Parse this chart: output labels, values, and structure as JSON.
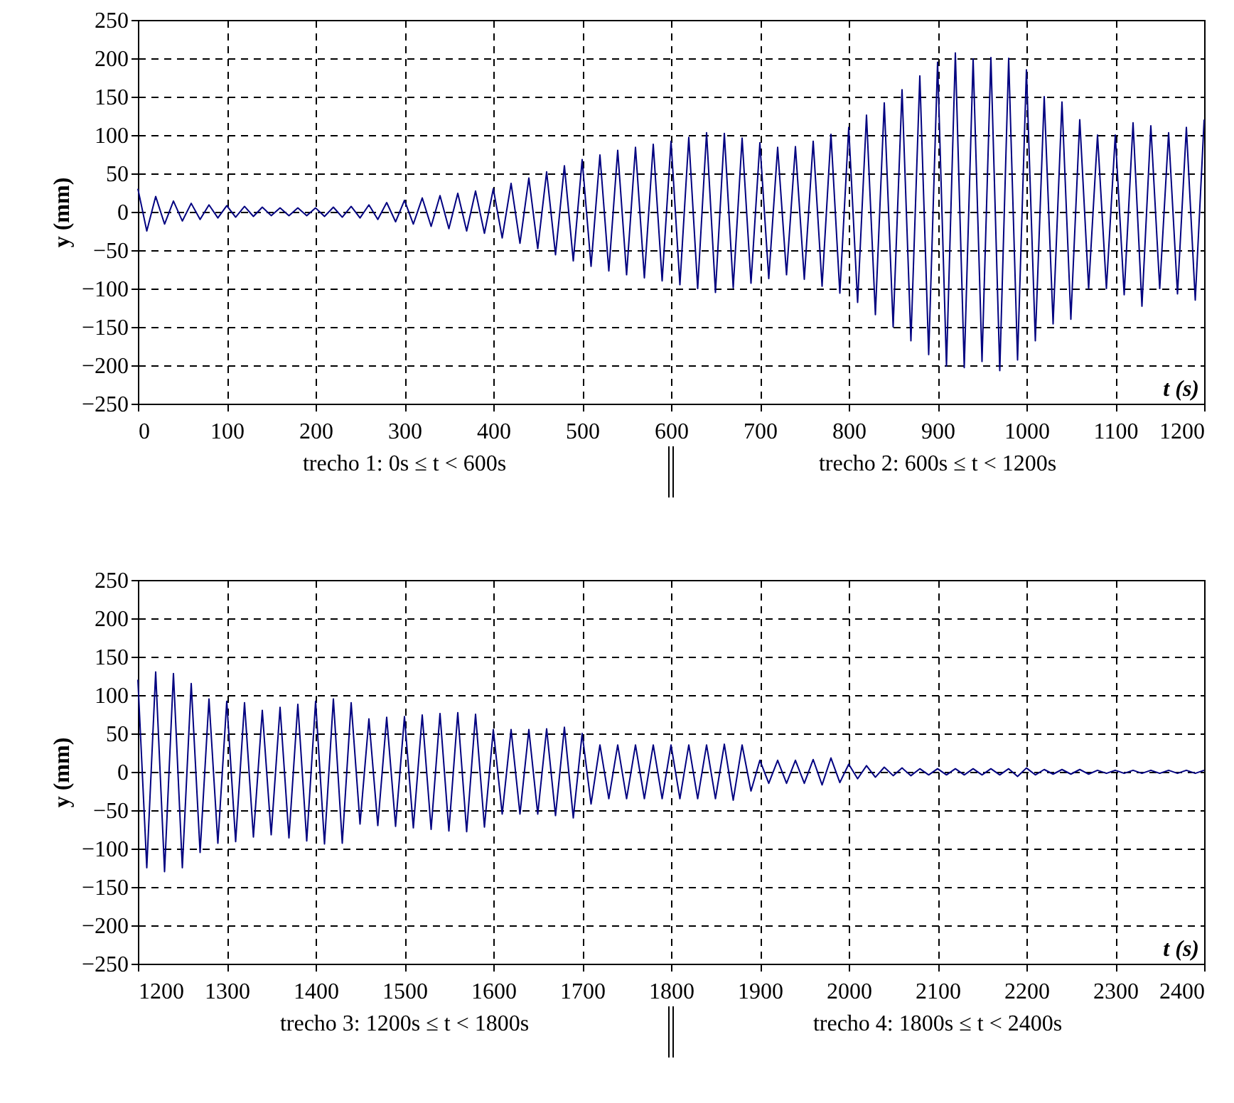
{
  "chart_data": [
    {
      "type": "line",
      "xlabel": "t (s)",
      "ylabel": "y (mm)",
      "xlim": [
        0,
        1200
      ],
      "xticks": [
        0,
        100,
        200,
        300,
        400,
        500,
        600,
        700,
        800,
        900,
        1000,
        1100,
        1200
      ],
      "ylim": [
        -250,
        250
      ],
      "yticks": [
        -250,
        -200,
        -150,
        -100,
        -50,
        0,
        50,
        100,
        150,
        200,
        250
      ],
      "grid": true,
      "line_style": "solid",
      "marker": "none",
      "annotations": [
        "trecho 1: 0s ≤ t < 600s",
        "trecho 2: 600s ≤ t < 1200s"
      ],
      "x": [
        0,
        10,
        20,
        30,
        40,
        50,
        60,
        70,
        80,
        90,
        100,
        110,
        120,
        130,
        140,
        150,
        160,
        170,
        180,
        190,
        200,
        210,
        220,
        230,
        240,
        250,
        260,
        270,
        280,
        290,
        300,
        310,
        320,
        330,
        340,
        350,
        360,
        370,
        380,
        390,
        400,
        410,
        420,
        430,
        440,
        450,
        460,
        470,
        480,
        490,
        500,
        510,
        520,
        530,
        540,
        550,
        560,
        570,
        580,
        590,
        600,
        610,
        620,
        630,
        640,
        650,
        660,
        670,
        680,
        690,
        700,
        710,
        720,
        730,
        740,
        750,
        760,
        770,
        780,
        790,
        800,
        810,
        820,
        830,
        840,
        850,
        860,
        870,
        880,
        890,
        900,
        910,
        920,
        930,
        940,
        950,
        960,
        970,
        980,
        990,
        1000,
        1010,
        1020,
        1030,
        1040,
        1050,
        1060,
        1070,
        1080,
        1090,
        1100,
        1110,
        1120,
        1130,
        1140,
        1150,
        1160,
        1170,
        1180,
        1190,
        1200
      ],
      "series": [
        {
          "color": "#000080",
          "values": [
            30,
            -25,
            20,
            -16,
            14,
            -12,
            11,
            -10,
            9,
            -8,
            8,
            -7,
            7,
            -6,
            6,
            -5,
            5,
            -5,
            5,
            -5,
            5,
            -6,
            6,
            -7,
            7,
            -8,
            9,
            -10,
            12,
            -13,
            15,
            -16,
            18,
            -19,
            21,
            -22,
            24,
            -25,
            27,
            -28,
            30,
            -34,
            37,
            -41,
            44,
            -48,
            52,
            -56,
            60,
            -64,
            68,
            -71,
            74,
            -77,
            80,
            -82,
            84,
            -86,
            88,
            -90,
            92,
            -95,
            97,
            -100,
            103,
            -105,
            102,
            -99,
            96,
            -93,
            90,
            -87,
            84,
            -82,
            85,
            -88,
            92,
            -97,
            101,
            -106,
            110,
            -118,
            126,
            -134,
            142,
            -150,
            159,
            -168,
            177,
            -186,
            195,
            -201,
            207,
            -203,
            199,
            -195,
            201,
            -207,
            200,
            -193,
            185,
            -168,
            150,
            -146,
            143,
            -140,
            120,
            -100,
            100,
            -100,
            100,
            -108,
            116,
            -123,
            112,
            -100,
            103,
            -107,
            110,
            -115,
            120
          ]
        }
      ]
    },
    {
      "type": "line",
      "xlabel": "t (s)",
      "ylabel": "y (mm)",
      "xlim": [
        1200,
        2400
      ],
      "xticks": [
        1200,
        1300,
        1400,
        1500,
        1600,
        1700,
        1800,
        1900,
        2000,
        2100,
        2200,
        2300,
        2400
      ],
      "ylim": [
        -250,
        250
      ],
      "yticks": [
        -250,
        -200,
        -150,
        -100,
        -50,
        0,
        50,
        100,
        150,
        200,
        250
      ],
      "grid": true,
      "line_style": "solid",
      "marker": "none",
      "annotations": [
        "trecho 3: 1200s ≤ t < 1800s",
        "trecho 4: 1800s ≤ t < 2400s"
      ],
      "x": [
        1200,
        1210,
        1220,
        1230,
        1240,
        1250,
        1260,
        1270,
        1280,
        1290,
        1300,
        1310,
        1320,
        1330,
        1340,
        1350,
        1360,
        1370,
        1380,
        1390,
        1400,
        1410,
        1420,
        1430,
        1440,
        1450,
        1460,
        1470,
        1480,
        1490,
        1500,
        1510,
        1520,
        1530,
        1540,
        1550,
        1560,
        1570,
        1580,
        1590,
        1600,
        1610,
        1620,
        1630,
        1640,
        1650,
        1660,
        1670,
        1680,
        1690,
        1700,
        1710,
        1720,
        1730,
        1740,
        1750,
        1760,
        1770,
        1780,
        1790,
        1800,
        1810,
        1820,
        1830,
        1840,
        1850,
        1860,
        1870,
        1880,
        1890,
        1900,
        1910,
        1920,
        1930,
        1940,
        1950,
        1960,
        1970,
        1980,
        1990,
        2000,
        2010,
        2020,
        2030,
        2040,
        2050,
        2060,
        2070,
        2080,
        2090,
        2100,
        2110,
        2120,
        2130,
        2140,
        2150,
        2160,
        2170,
        2180,
        2190,
        2200,
        2210,
        2220,
        2230,
        2240,
        2250,
        2260,
        2270,
        2280,
        2290,
        2300,
        2310,
        2320,
        2330,
        2340,
        2350,
        2360,
        2370,
        2380,
        2390,
        2400
      ],
      "series": [
        {
          "color": "#000080",
          "values": [
            120,
            -125,
            130,
            -130,
            128,
            -125,
            115,
            -105,
            95,
            -93,
            92,
            -91,
            90,
            -85,
            80,
            -82,
            84,
            -86,
            88,
            -90,
            92,
            -94,
            95,
            -93,
            90,
            -68,
            69,
            -70,
            71,
            -71,
            72,
            -73,
            74,
            -75,
            76,
            -77,
            77,
            -78,
            75,
            -72,
            55,
            -55,
            55,
            -55,
            55,
            -55,
            56,
            -57,
            58,
            -60,
            50,
            -42,
            35,
            -35,
            35,
            -35,
            35,
            -35,
            35,
            -35,
            35,
            -35,
            35,
            -35,
            35,
            -35,
            36,
            -37,
            35,
            -25,
            15,
            -15,
            15,
            -15,
            15,
            -15,
            16,
            -17,
            18,
            -14,
            10,
            -9,
            8,
            -7,
            6,
            -5,
            5,
            -5,
            4,
            -4,
            4,
            -4,
            4,
            -4,
            4,
            -4,
            4,
            -4,
            4,
            -6,
            5,
            -4,
            3,
            -3,
            3,
            -3,
            3,
            -3,
            2,
            -2,
            2,
            -2,
            2,
            -2,
            2,
            -2,
            2,
            -2,
            2,
            -2,
            2
          ]
        }
      ]
    }
  ]
}
